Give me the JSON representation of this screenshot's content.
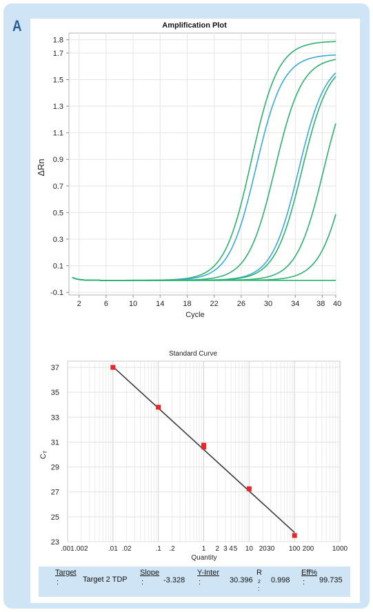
{
  "panel_label": "A",
  "chart_data": [
    {
      "type": "line",
      "title": "Amplification Plot",
      "xlabel": "Cycle",
      "ylabel": "ΔRn",
      "xlim": [
        0.5,
        40
      ],
      "ylim": [
        -0.12,
        1.85
      ],
      "xticks": [
        2,
        6,
        10,
        14,
        18,
        22,
        26,
        30,
        34,
        38,
        40
      ],
      "yticks": [
        -0.1,
        0.1,
        0.3,
        0.5,
        0.7,
        0.9,
        1.1,
        1.3,
        1.5,
        1.7,
        1.8
      ],
      "grid": true,
      "series": [
        {
          "color": "#2bb06c",
          "midpoint": 27.5,
          "plateau": 1.8
        },
        {
          "color": "#36a9d6",
          "midpoint": 28.2,
          "plateau": 1.7
        },
        {
          "color": "#2bb06c",
          "midpoint": 31.0,
          "plateau": 1.68
        },
        {
          "color": "#36a9d6",
          "midpoint": 34.5,
          "plateau": 1.66
        },
        {
          "color": "#2bb06c",
          "midpoint": 35.0,
          "plateau": 1.66
        },
        {
          "color": "#2bb06c",
          "midpoint": 38.2,
          "plateau": 1.66
        },
        {
          "color": "#2bb06c",
          "midpoint": 41.7,
          "plateau": 1.66
        },
        {
          "color": "#2bb06c",
          "midpoint": 70.0,
          "plateau": 0.0
        }
      ]
    },
    {
      "type": "scatter",
      "title": "Standard Curve",
      "xlabel": "Quantity",
      "ylabel": "CT",
      "xscale": "log",
      "xlim": [
        0.001,
        1000
      ],
      "ylim": [
        23,
        37.5
      ],
      "xtick_labels": [
        {
          "value": 0.001,
          "label": ".001"
        },
        {
          "value": 0.002,
          "label": ".002"
        },
        {
          "value": 0.01,
          "label": ".01"
        },
        {
          "value": 0.02,
          "label": ".02"
        },
        {
          "value": 0.1,
          "label": ".1"
        },
        {
          "value": 0.2,
          "label": ".2"
        },
        {
          "value": 1,
          "label": "1"
        },
        {
          "value": 2,
          "label": "2"
        },
        {
          "value": 3,
          "label": "3"
        },
        {
          "value": 4,
          "label": "4"
        },
        {
          "value": 5,
          "label": "5"
        },
        {
          "value": 10,
          "label": "10"
        },
        {
          "value": 20,
          "label": "20"
        },
        {
          "value": 30,
          "label": "30"
        },
        {
          "value": 100,
          "label": "100"
        },
        {
          "value": 200,
          "label": "200"
        },
        {
          "value": 1000,
          "label": "1000"
        }
      ],
      "yticks": [
        23,
        25,
        27,
        29,
        31,
        33,
        35,
        37
      ],
      "grid": true,
      "points": [
        {
          "x": 0.01,
          "y": 37.0
        },
        {
          "x": 0.1,
          "y": 33.8
        },
        {
          "x": 1,
          "y": 30.6
        },
        {
          "x": 1,
          "y": 30.75
        },
        {
          "x": 10,
          "y": 27.25
        },
        {
          "x": 100,
          "y": 23.5
        }
      ],
      "fit_line": {
        "slope": -3.328,
        "intercept": 30.396
      },
      "point_color": "#e8262a",
      "line_color": "#3a3a3a"
    }
  ],
  "stats": {
    "target_label": "Target",
    "target_colon": ":",
    "target_value": "Target 2 TDP",
    "slope_label": "Slope",
    "slope_colon": ":",
    "slope_value": "-3.328",
    "yinter_label": "Y-Inter",
    "yinter_colon": ":",
    "yinter_value": "30.396",
    "r_label": "R",
    "r_sup": "2",
    "r_colon": ":",
    "r_value": "0.998",
    "eff_label": "Eff%",
    "eff_colon": ":",
    "eff_value": "99.735"
  }
}
